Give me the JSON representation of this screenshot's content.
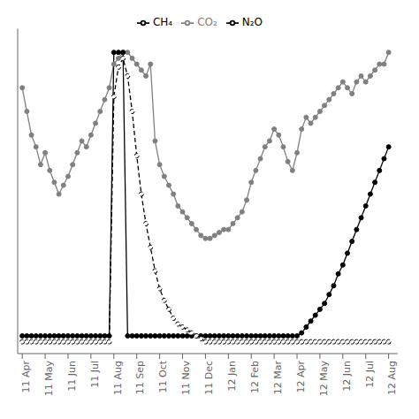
{
  "chart_data": {
    "type": "line",
    "x": [
      0,
      1,
      2,
      3,
      4,
      5,
      6,
      7,
      8,
      9,
      10,
      11,
      12,
      13,
      14,
      15,
      16,
      17,
      18,
      19,
      20,
      21,
      22,
      23,
      24,
      25,
      26,
      27,
      28,
      29,
      30,
      31,
      32,
      33,
      34,
      35,
      36,
      37,
      38,
      39,
      40,
      41,
      42,
      43,
      44,
      45,
      46,
      47,
      48,
      49,
      50,
      51,
      52,
      53,
      54,
      55,
      56,
      57,
      58,
      59,
      60,
      61,
      62,
      63,
      64,
      65,
      66,
      67,
      68,
      69,
      70,
      71,
      72,
      73,
      74,
      75,
      76,
      77,
      78,
      79,
      80
    ],
    "xlim": [
      -1,
      82
    ],
    "ylim": [
      -0.02,
      1.08
    ],
    "xticks": [
      {
        "value": 0,
        "label": "11 Apr"
      },
      {
        "value": 5,
        "label": "11 May"
      },
      {
        "value": 10,
        "label": "11 Jun"
      },
      {
        "value": 15,
        "label": "11 Jul"
      },
      {
        "value": 20,
        "label": "11 Aug"
      },
      {
        "value": 25,
        "label": "11 Sep"
      },
      {
        "value": 30,
        "label": "11 Oct"
      },
      {
        "value": 35,
        "label": "11 Nov"
      },
      {
        "value": 40,
        "label": "11 Dec"
      },
      {
        "value": 45,
        "label": "12 Jan"
      },
      {
        "value": 50,
        "label": "12 Feb"
      },
      {
        "value": 55,
        "label": "12 Mar"
      },
      {
        "value": 60,
        "label": "12 Apr"
      },
      {
        "value": 65,
        "label": "12 May"
      },
      {
        "value": 70,
        "label": "12 Jun"
      },
      {
        "value": 75,
        "label": "12 Jul"
      },
      {
        "value": 80,
        "label": "12 Aug"
      }
    ],
    "yticks": [],
    "tick_labels": "x",
    "grid": false,
    "legend": "upper center",
    "series": [
      {
        "name": "CO₂",
        "color": "#808080",
        "marker": "circle",
        "line_style": "solid",
        "values": [
          0.88,
          0.8,
          0.72,
          0.68,
          0.62,
          0.66,
          0.6,
          0.56,
          0.52,
          0.55,
          0.58,
          0.62,
          0.66,
          0.7,
          0.68,
          0.72,
          0.76,
          0.8,
          0.84,
          0.88,
          0.96,
          0.98,
          1.0,
          1.0,
          0.98,
          0.96,
          0.94,
          0.92,
          0.96,
          0.7,
          0.62,
          0.58,
          0.55,
          0.52,
          0.48,
          0.46,
          0.44,
          0.42,
          0.4,
          0.38,
          0.37,
          0.37,
          0.38,
          0.39,
          0.4,
          0.4,
          0.42,
          0.44,
          0.46,
          0.5,
          0.56,
          0.6,
          0.64,
          0.68,
          0.7,
          0.74,
          0.72,
          0.68,
          0.63,
          0.6,
          0.66,
          0.74,
          0.78,
          0.76,
          0.78,
          0.8,
          0.82,
          0.84,
          0.86,
          0.88,
          0.9,
          0.88,
          0.86,
          0.9,
          0.92,
          0.9,
          0.92,
          0.94,
          0.96,
          0.96,
          1.0
        ]
      },
      {
        "name": "N₂O",
        "color": "#000000",
        "marker": "circle",
        "line_style": "solid",
        "values": [
          0.04,
          0.04,
          0.04,
          0.04,
          0.04,
          0.04,
          0.04,
          0.04,
          0.04,
          0.04,
          0.04,
          0.04,
          0.04,
          0.04,
          0.04,
          0.04,
          0.04,
          0.04,
          0.04,
          0.04,
          1.0,
          1.0,
          1.0,
          0.04,
          0.04,
          0.04,
          0.04,
          0.04,
          0.04,
          0.04,
          0.04,
          0.04,
          0.04,
          0.04,
          0.04,
          0.04,
          0.04,
          0.04,
          0.04,
          0.04,
          0.04,
          0.04,
          0.04,
          0.04,
          0.04,
          0.04,
          0.04,
          0.04,
          0.04,
          0.04,
          0.04,
          0.04,
          0.04,
          0.04,
          0.04,
          0.04,
          0.04,
          0.04,
          0.04,
          0.04,
          0.04,
          0.05,
          0.07,
          0.09,
          0.11,
          0.13,
          0.15,
          0.18,
          0.21,
          0.25,
          0.28,
          0.32,
          0.36,
          0.4,
          0.44,
          0.48,
          0.52,
          0.56,
          0.6,
          0.64,
          0.68
        ]
      },
      {
        "name": "CH₄",
        "color": "#000000",
        "marker": "open circle",
        "line_style": "dashed",
        "values": [
          0.02,
          0.02,
          0.02,
          0.02,
          0.02,
          0.02,
          0.02,
          0.02,
          0.02,
          0.02,
          0.02,
          0.02,
          0.02,
          0.02,
          0.02,
          0.02,
          0.02,
          0.02,
          0.02,
          0.02,
          0.85,
          0.95,
          0.98,
          0.92,
          0.8,
          0.65,
          0.52,
          0.42,
          0.34,
          0.26,
          0.2,
          0.16,
          0.13,
          0.1,
          0.08,
          0.07,
          0.06,
          0.05,
          0.04,
          0.03,
          0.02,
          0.02,
          0.02,
          0.02,
          0.02,
          0.02,
          0.02,
          0.02,
          0.02,
          0.02,
          0.02,
          0.02,
          0.02,
          0.02,
          0.02,
          0.02,
          0.02,
          0.02,
          0.02,
          0.02,
          0.02,
          0.02,
          0.02,
          0.02,
          0.02,
          0.02,
          0.02,
          0.02,
          0.02,
          0.02,
          0.02,
          0.02,
          0.02,
          0.02,
          0.02,
          0.02,
          0.02,
          0.02,
          0.02,
          0.02,
          0.02
        ]
      }
    ]
  }
}
